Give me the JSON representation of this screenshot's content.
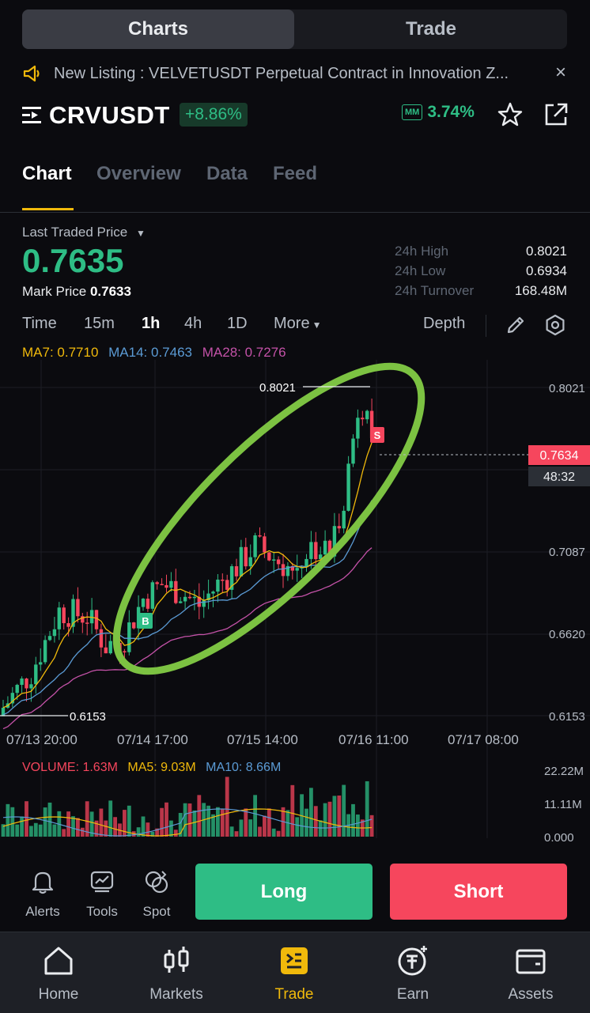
{
  "top_tabs": {
    "charts": "Charts",
    "trade": "Trade"
  },
  "announcement": {
    "text": "New Listing : VELVETUSDT Perpetual Contract in Innovation Z...",
    "close": "×"
  },
  "symbol": {
    "name": "CRVUSDT",
    "change": "+8.86%",
    "mm_badge": "MM",
    "mm_value": "3.74%"
  },
  "tabs": [
    "Chart",
    "Overview",
    "Data",
    "Feed"
  ],
  "price": {
    "last_traded_label": "Last Traded Price",
    "last": "0.7635",
    "mark_label": "Mark Price",
    "mark": "0.7633",
    "stats": [
      {
        "label": "24h High",
        "value": "0.8021"
      },
      {
        "label": "24h Low",
        "value": "0.6934"
      },
      {
        "label": "24h Turnover",
        "value": "168.48M"
      }
    ]
  },
  "intervals": {
    "items": [
      "Time",
      "15m",
      "1h",
      "4h",
      "1D",
      "More"
    ],
    "selected": "1h",
    "depth": "Depth"
  },
  "ma": {
    "ma7": "MA7: 0.7710",
    "ma14": "MA14: 0.7463",
    "ma28": "MA28: 0.7276"
  },
  "chart_data": {
    "type": "candlestick",
    "y_ticks": [
      "0.8021",
      "0.7087",
      "0.6620",
      "0.6153"
    ],
    "x_ticks": [
      "07/13 20:00",
      "07/14 17:00",
      "07/15 14:00",
      "07/16 11:00",
      "07/17 08:00"
    ],
    "high_marker": "0.8021",
    "low_marker": "0.6153",
    "current_price": "0.7634",
    "countdown": "48:32",
    "buy_marker": "B",
    "sell_marker": "S",
    "ylim": [
      0.6153,
      0.8021
    ],
    "annotation": "green ellipse around uptrend",
    "colors": {
      "up": "#2ebd85",
      "down": "#f6465d",
      "ma7": "#f0b90b",
      "ma14": "#5b9bd5",
      "ma28": "#c452a8",
      "ellipse": "#7cc242"
    }
  },
  "volume": {
    "label": "VOLUME: 1.63M",
    "ma5": "MA5: 9.03M",
    "ma10": "MA10: 8.66M",
    "ticks": [
      "22.22M",
      "11.11M",
      "0.000"
    ]
  },
  "actions": {
    "alerts": "Alerts",
    "tools": "Tools",
    "spot": "Spot",
    "long": "Long",
    "short": "Short"
  },
  "nav": {
    "home": "Home",
    "markets": "Markets",
    "trade": "Trade",
    "earn": "Earn",
    "assets": "Assets",
    "active": "Trade"
  }
}
